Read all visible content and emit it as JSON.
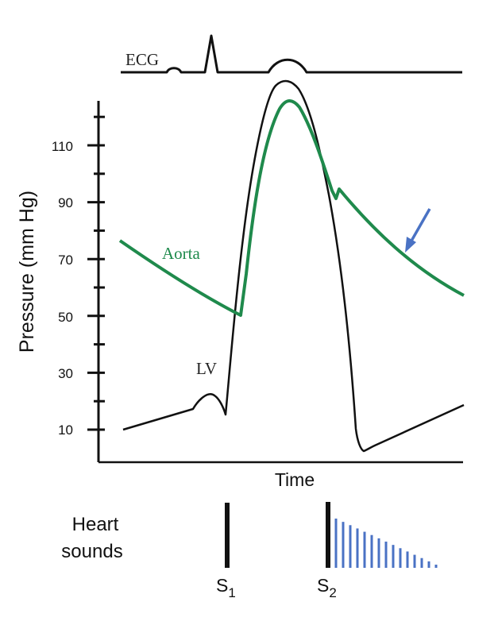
{
  "labels": {
    "ecg": "ECG",
    "aorta": "Aorta",
    "lv": "LV",
    "y_axis": "Pressure (mm Hg)",
    "x_axis": "Time",
    "heart_sounds_line1": "Heart",
    "heart_sounds_line2": "sounds",
    "s1": "S",
    "s1_sub": "1",
    "s2": "S",
    "s2_sub": "2"
  },
  "y_ticks": [
    "10",
    "30",
    "50",
    "70",
    "90",
    "110"
  ],
  "colors": {
    "aorta": "#1f8a4c",
    "lv": "#111111",
    "ecg": "#111111",
    "arrow": "#4a72c4",
    "murmur": "#4a72c4",
    "axis": "#111111"
  },
  "icons": {
    "arrow": "down-left-arrow-icon"
  }
}
